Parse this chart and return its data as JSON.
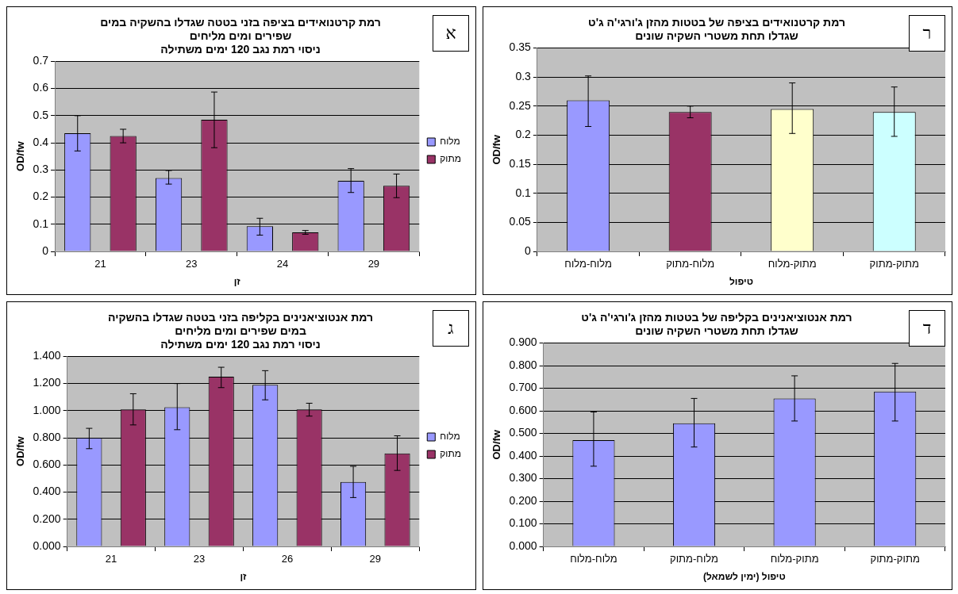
{
  "chart_data": [
    {
      "type": "bar",
      "title": "רמת קרטנואידים בציפה בזני בטטה שגדלו בהשקיה במים\nשפירים ומים מליחים\nניסוי רמת נגב 120 ימים משתילה",
      "xlabel": "זן",
      "ylabel": "OD/fw",
      "annotations": [
        "א"
      ],
      "categories": [
        "21",
        "23",
        "24",
        "29"
      ],
      "series": [
        {
          "name": "מלוח",
          "color": "#9999ff",
          "values": [
            0.435,
            0.27,
            0.093,
            0.26
          ],
          "errors": [
            [
              0.37,
              0.5
            ],
            [
              0.248,
              0.298
            ],
            [
              0.06,
              0.122
            ],
            [
              0.217,
              0.305
            ]
          ]
        },
        {
          "name": "מתוק",
          "color": "#993366",
          "values": [
            0.425,
            0.485,
            0.07,
            0.242
          ],
          "errors": [
            [
              0.4,
              0.45
            ],
            [
              0.382,
              0.587
            ],
            [
              0.063,
              0.077
            ],
            [
              0.198,
              0.285
            ]
          ]
        }
      ],
      "ylim": [
        0,
        0.7
      ],
      "yticks": [
        0,
        0.1,
        0.2,
        0.3,
        0.4,
        0.5,
        0.6,
        0.7
      ],
      "grid": "y",
      "legend": "right"
    },
    {
      "type": "bar",
      "title": "רמת קרטנואידים בציפה של בטטות מהזן ג'ורגי'ה ג'ט\nשגדלו תחת משטרי השקיה שונים",
      "xlabel": "טיפול",
      "ylabel": "OD/fw",
      "annotations": [
        "ר"
      ],
      "categories": [
        "מלוח-מלוח",
        "מלוח-מתוק",
        "מתוק-מלוח",
        "מתוק-מתוק"
      ],
      "values": [
        0.26,
        0.24,
        0.245,
        0.24
      ],
      "colors": [
        "#9999ff",
        "#993366",
        "#ffffcc",
        "#ccffff"
      ],
      "errors": [
        [
          0.215,
          0.302
        ],
        [
          0.23,
          0.25
        ],
        [
          0.203,
          0.29
        ],
        [
          0.198,
          0.283
        ]
      ],
      "ylim": [
        0,
        0.35
      ],
      "yticks": [
        0,
        0.05,
        0.1,
        0.15,
        0.2,
        0.25,
        0.3,
        0.35
      ],
      "grid": "y"
    },
    {
      "type": "bar",
      "title": "רמת אנטוציאנינים בקליפה בזני בטטה שגדלו בהשקיה\nבמים שפירים ומים מליחים\nניסוי רמת נגב 120 ימים משתילה",
      "xlabel": "זן",
      "ylabel": "OD/fw",
      "annotations": [
        "ג"
      ],
      "categories": [
        "21",
        "23",
        "26",
        "29"
      ],
      "series": [
        {
          "name": "מלוח",
          "color": "#9999ff",
          "values": [
            0.8,
            1.025,
            1.19,
            0.475
          ],
          "errors": [
            [
              0.72,
              0.87
            ],
            [
              0.86,
              1.2
            ],
            [
              1.08,
              1.295
            ],
            [
              0.36,
              0.59
            ]
          ]
        },
        {
          "name": "מתוק",
          "color": "#993366",
          "values": [
            1.01,
            1.25,
            1.01,
            0.685
          ],
          "errors": [
            [
              0.895,
              1.125
            ],
            [
              1.17,
              1.32
            ],
            [
              0.96,
              1.055
            ],
            [
              0.56,
              0.815
            ]
          ]
        }
      ],
      "ylim": [
        0,
        1.4
      ],
      "yticks": [
        {
          "value": 0,
          "label": "0.000"
        },
        {
          "value": 0.2,
          "label": "0.200"
        },
        {
          "value": 0.4,
          "label": "0.400"
        },
        {
          "value": 0.6,
          "label": "0.600"
        },
        {
          "value": 0.8,
          "label": "0.800"
        },
        {
          "value": 1,
          "label": "1.000"
        },
        {
          "value": 1.2,
          "label": "1.200"
        },
        {
          "value": 1.4,
          "label": "1.400"
        }
      ],
      "grid": "y",
      "legend": "right"
    },
    {
      "type": "bar",
      "title": "רמת אנטוציאנינים בקליפה של בטטות מהזן ג'ורגי'ה ג'ט\nשגדלו תחת משטרי השקיה שונים",
      "xlabel": "טיפול (ימין לשמאל)",
      "ylabel": "OD/fw",
      "annotations": [
        "ד"
      ],
      "categories": [
        "מלוח-מלוח",
        "מלוח-מתוק",
        "מתוק-מלוח",
        "מתוק-מתוק"
      ],
      "values": [
        0.47,
        0.545,
        0.655,
        0.685
      ],
      "color": "#9999ff",
      "errors": [
        [
          0.355,
          0.595
        ],
        [
          0.44,
          0.655
        ],
        [
          0.555,
          0.755
        ],
        [
          0.555,
          0.81
        ]
      ],
      "ylim": [
        0,
        0.9
      ],
      "yticks": [
        {
          "value": 0,
          "label": "0.000"
        },
        {
          "value": 0.1,
          "label": "0.100"
        },
        {
          "value": 0.2,
          "label": "0.200"
        },
        {
          "value": 0.3,
          "label": "0.300"
        },
        {
          "value": 0.4,
          "label": "0.400"
        },
        {
          "value": 0.5,
          "label": "0.500"
        },
        {
          "value": 0.6,
          "label": "0.600"
        },
        {
          "value": 0.7,
          "label": "0.700"
        },
        {
          "value": 0.8,
          "label": "0.800"
        },
        {
          "value": 0.9,
          "label": "0.900"
        }
      ],
      "grid": "y"
    }
  ]
}
